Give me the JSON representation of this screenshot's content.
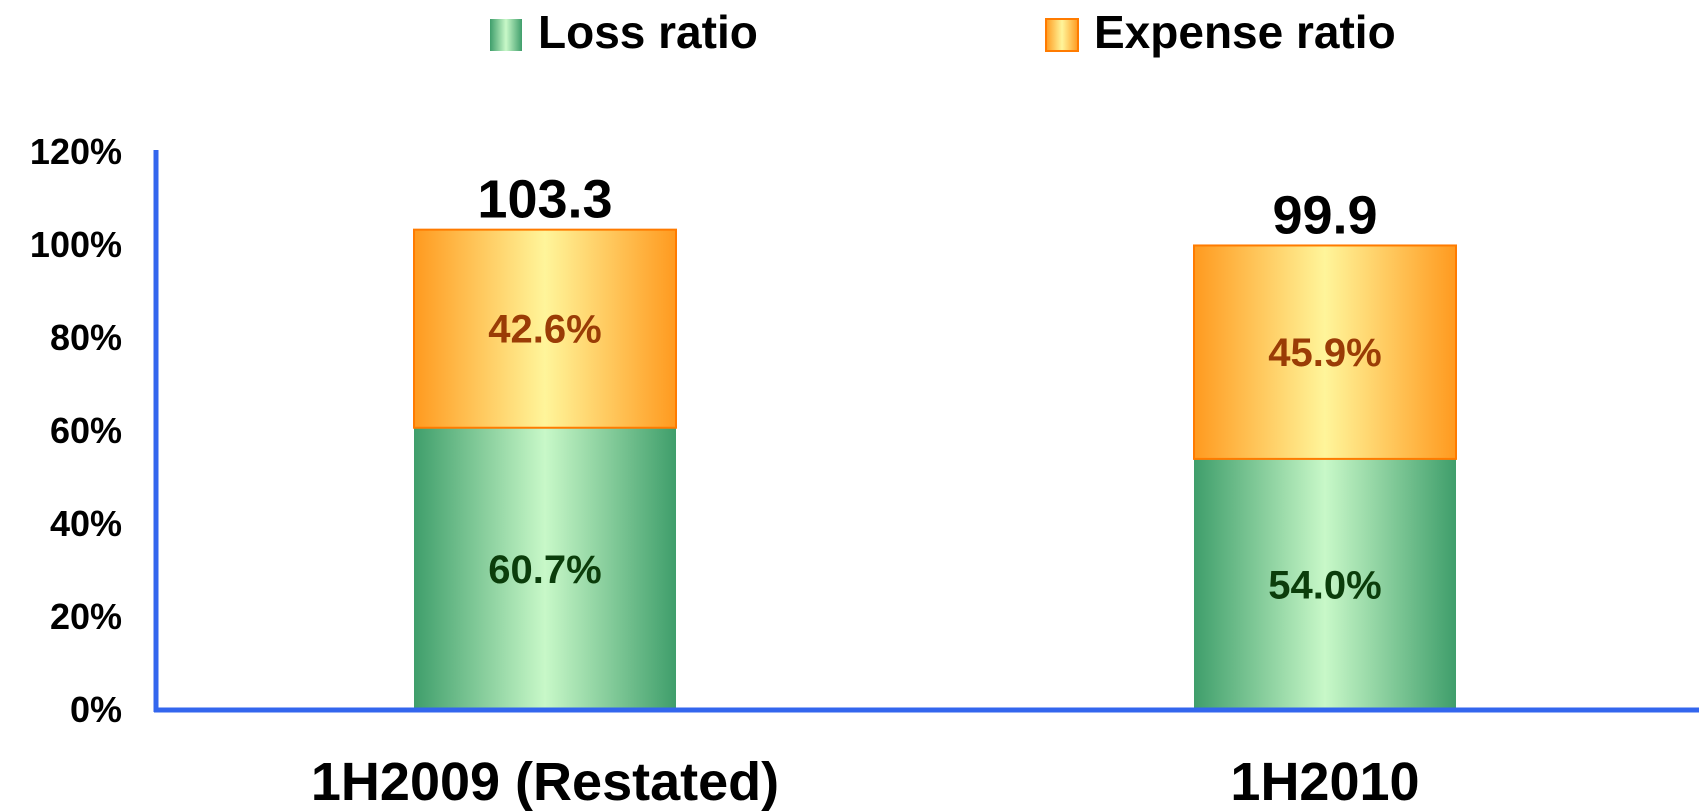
{
  "chart_data": {
    "type": "bar",
    "stacked": true,
    "categories": [
      "1H2009 (Restated)",
      "1H2010"
    ],
    "series": [
      {
        "name": "Loss ratio",
        "values": [
          60.7,
          54.0
        ],
        "labels": [
          "60.7%",
          "54.0%"
        ],
        "color": "#3f9e6b",
        "highlight": "#c8f8c8",
        "label_color": "#0b3d0b"
      },
      {
        "name": "Expense ratio",
        "values": [
          42.6,
          45.9
        ],
        "labels": [
          "42.6%",
          "45.9%"
        ],
        "color": "#ff9a1f",
        "highlight": "#fff59a",
        "label_color": "#9a3c06",
        "border": "#ff7b00"
      }
    ],
    "totals": [
      "103.3",
      "99.9"
    ],
    "ylim": [
      0,
      120
    ],
    "yticks": [
      0,
      20,
      40,
      60,
      80,
      100,
      120
    ],
    "ytick_labels": [
      "0%",
      "20%",
      "40%",
      "60%",
      "80%",
      "100%",
      "120%"
    ],
    "axis_color": "#3366ee",
    "legend_position": "top",
    "grid": false,
    "title": "",
    "xlabel": "",
    "ylabel": ""
  }
}
